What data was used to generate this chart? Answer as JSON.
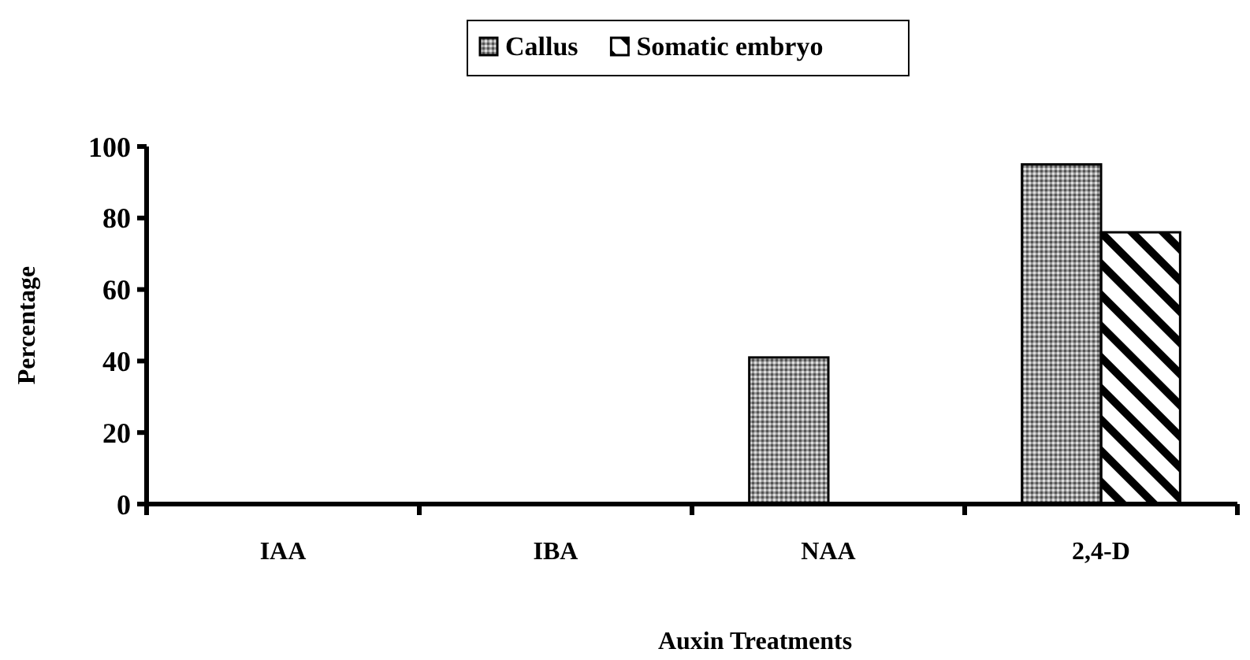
{
  "chart_data": {
    "type": "bar",
    "xlabel": "Auxin Treatments",
    "ylabel": "Percentage",
    "categories": [
      "IAA",
      "IBA",
      "NAA",
      "2,4-D"
    ],
    "series": [
      {
        "name": "Callus",
        "color": "#9a9a9a",
        "values": [
          0,
          0,
          41,
          95
        ]
      },
      {
        "name": "Somatic embryo",
        "color": "#ffffff",
        "values": [
          0,
          0,
          0,
          76
        ]
      }
    ],
    "ylim": [
      0,
      100
    ],
    "yticks": [
      0,
      20,
      40,
      60,
      80,
      100
    ],
    "grid": false,
    "legend": "top"
  }
}
